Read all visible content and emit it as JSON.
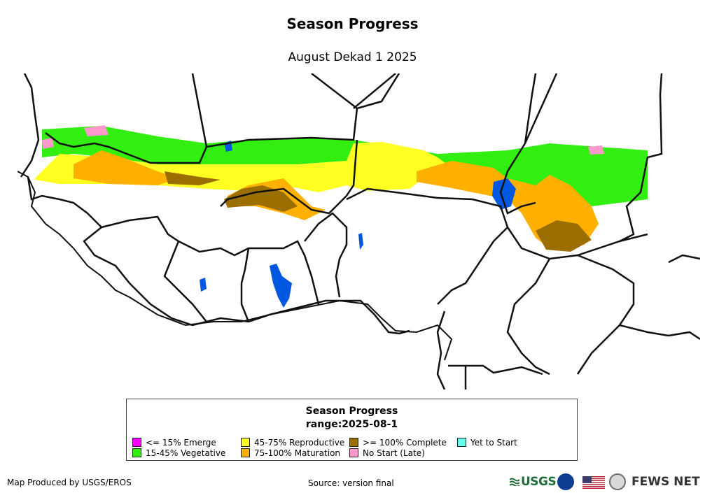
{
  "title": "Season Progress",
  "subtitle": "August Dekad 1 2025",
  "map": {
    "region": "West Africa",
    "colors": {
      "emerge": "#ff00ff",
      "vegetative": "#33ee11",
      "reproductive": "#ffff22",
      "maturation": "#ffb000",
      "complete": "#9a6e00",
      "no_start_late": "#ff99cc",
      "yet_to_start": "#66ffee",
      "water": "#0057e0",
      "land": "#ffffff",
      "border": "#111111"
    }
  },
  "legend": {
    "title": "Season Progress",
    "range": "range:2025-08-1",
    "items": [
      {
        "label": "<= 15% Emerge",
        "color": "#ff00ff"
      },
      {
        "label": "15-45% Vegetative",
        "color": "#33ee11"
      },
      {
        "label": "45-75% Reproductive",
        "color": "#ffff22"
      },
      {
        "label": "75-100% Maturation",
        "color": "#ffb000"
      },
      {
        "label": ">= 100% Complete",
        "color": "#9a6e00"
      },
      {
        "label": "No Start (Late)",
        "color": "#ff99cc"
      },
      {
        "label": "Yet to Start",
        "color": "#66ffee"
      }
    ]
  },
  "footer": {
    "produced_by": "Map Produced by USGS/EROS",
    "source": "Source: version final",
    "logos": {
      "usgs": "USGS",
      "nasa": "NASA",
      "fews": "FEWS NET"
    },
    "icons": [
      "usgs-logo-icon",
      "nasa-logo-icon",
      "us-flag-icon",
      "state-dept-seal-icon"
    ]
  }
}
